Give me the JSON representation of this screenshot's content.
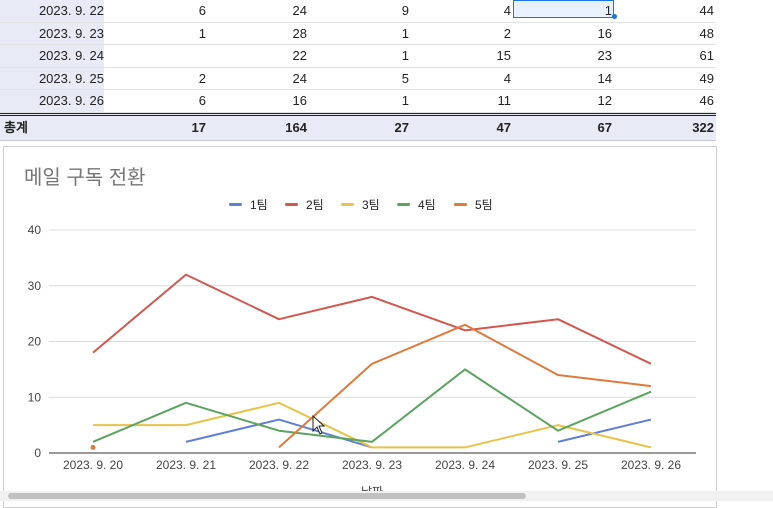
{
  "table": {
    "rows": [
      {
        "date": "2023. 9. 22",
        "t1": "6",
        "t2": "24",
        "t3": "9",
        "t4": "4",
        "t5": "1",
        "total": "44"
      },
      {
        "date": "2023. 9. 23",
        "t1": "1",
        "t2": "28",
        "t3": "1",
        "t4": "2",
        "t5": "16",
        "total": "48"
      },
      {
        "date": "2023. 9. 24",
        "t1": "",
        "t2": "22",
        "t3": "1",
        "t4": "15",
        "t5": "23",
        "total": "61"
      },
      {
        "date": "2023. 9. 25",
        "t1": "2",
        "t2": "24",
        "t3": "5",
        "t4": "4",
        "t5": "14",
        "total": "49"
      },
      {
        "date": "2023. 9. 26",
        "t1": "6",
        "t2": "16",
        "t3": "1",
        "t4": "11",
        "t5": "12",
        "total": "46"
      }
    ],
    "totals": {
      "label": "총계",
      "t1": "17",
      "t2": "164",
      "t3": "27",
      "t4": "47",
      "t5": "67",
      "total": "322"
    }
  },
  "chart_data": {
    "type": "line",
    "title": "메일 구독 전환",
    "xlabel": "날짜",
    "ylabel": "",
    "categories": [
      "2023. 9. 20",
      "2023. 9. 21",
      "2023. 9. 22",
      "2023. 9. 23",
      "2023. 9. 24",
      "2023. 9. 25",
      "2023. 9. 26"
    ],
    "ylim": [
      0,
      40
    ],
    "yticks": [
      "0",
      "10",
      "20",
      "30",
      "40"
    ],
    "grid": true,
    "legend_position": "top",
    "series": [
      {
        "name": "1팀",
        "color": "#5f7fd6",
        "values": [
          null,
          2,
          6,
          1,
          null,
          2,
          6
        ]
      },
      {
        "name": "2팀",
        "color": "#d0584e",
        "values": [
          18,
          32,
          24,
          28,
          22,
          24,
          16
        ]
      },
      {
        "name": "3팀",
        "color": "#e8c34a",
        "values": [
          5,
          5,
          9,
          1,
          1,
          5,
          1
        ]
      },
      {
        "name": "4팀",
        "color": "#5aa45e",
        "values": [
          2,
          9,
          4,
          2,
          15,
          4,
          11
        ]
      },
      {
        "name": "5팀",
        "color": "#e07a3a",
        "values": [
          1,
          null,
          1,
          16,
          23,
          14,
          12
        ]
      }
    ]
  }
}
